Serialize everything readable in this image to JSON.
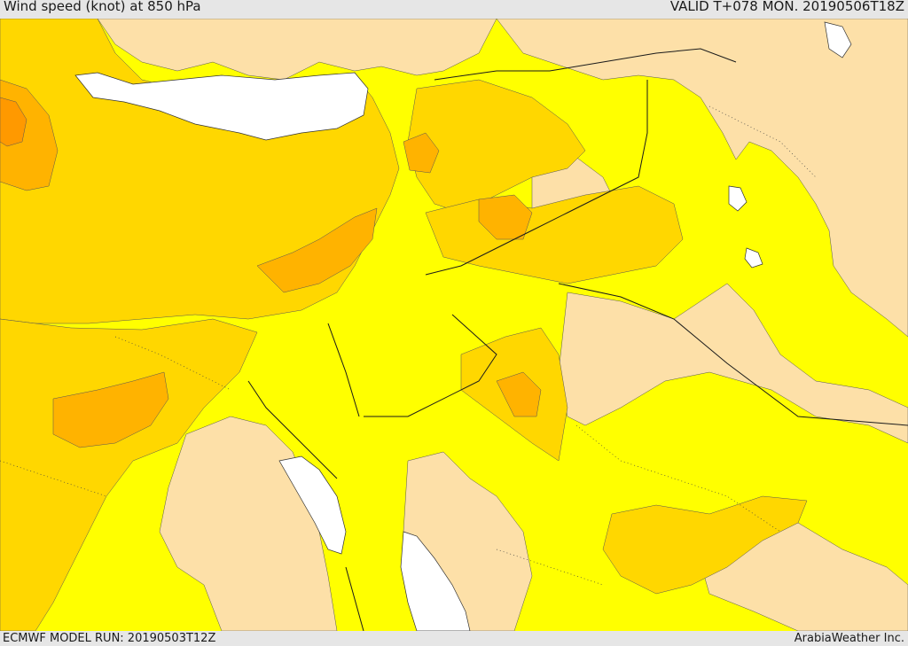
{
  "header": {
    "title": "Wind speed (knot) at 850 hPa",
    "valid": "VALID T+078 MON. 20190506T18Z"
  },
  "footer": {
    "model_run": "ECMWF MODEL RUN: 20190503T12Z",
    "credit": "ArabiaWeather Inc."
  },
  "colors": {
    "water": "#ffffff",
    "tan": "#fde0a8",
    "yellow": "#ffff00",
    "gold": "#ffd700",
    "orange": "#ffb300",
    "dark_orange": "#ff9900",
    "border": "#1a1a1a"
  }
}
